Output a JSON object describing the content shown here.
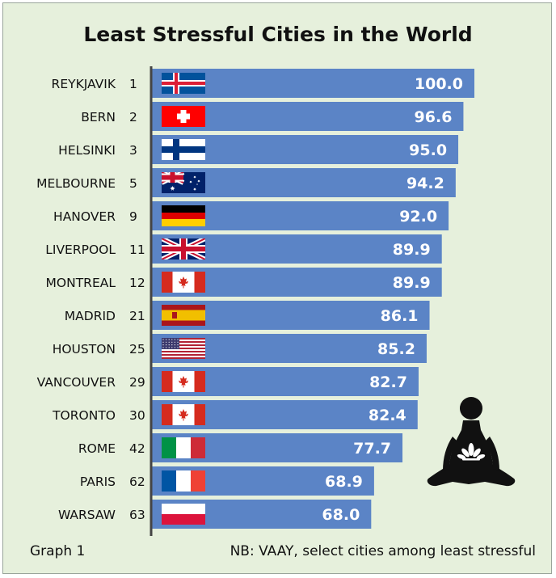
{
  "chart_data": {
    "type": "bar",
    "orientation": "horizontal",
    "title": "Least Stressful Cities in the World",
    "xlabel": "",
    "ylabel": "",
    "xlim": [
      0,
      100
    ],
    "grid": false,
    "legend": "none",
    "bar_color": "#5b84c6",
    "categories": [
      "REYKJAVIK",
      "BERN",
      "HELSINKI",
      "MELBOURNE",
      "HANOVER",
      "LIVERPOOL",
      "MONTREAL",
      "MADRID",
      "HOUSTON",
      "VANCOUVER",
      "TORONTO",
      "ROME",
      "PARIS",
      "WARSAW"
    ],
    "ranks": [
      "1",
      "2",
      "3",
      "5",
      "9",
      "11",
      "12",
      "21",
      "25",
      "29",
      "30",
      "42",
      "62",
      "63"
    ],
    "values": [
      100.0,
      96.6,
      95.0,
      94.2,
      92.0,
      89.9,
      89.9,
      86.1,
      85.2,
      82.7,
      82.4,
      77.7,
      68.9,
      68.0
    ],
    "value_labels": [
      "100.0",
      "96.6",
      "95.0",
      "94.2",
      "92.0",
      "89.9",
      "89.9",
      "86.1",
      "85.2",
      "82.7",
      "82.4",
      "77.7",
      "68.9",
      "68.0"
    ],
    "flags": [
      "iceland-flag-icon",
      "switzerland-flag-icon",
      "finland-flag-icon",
      "australia-flag-icon",
      "germany-flag-icon",
      "uk-flag-icon",
      "canada-flag-icon",
      "spain-flag-icon",
      "usa-flag-icon",
      "canada-flag-icon",
      "canada-flag-icon",
      "italy-flag-icon",
      "france-flag-icon",
      "poland-flag-icon"
    ]
  },
  "decoration": {
    "icon": "meditation-lotus-icon"
  },
  "footer": {
    "graph_label": "Graph 1",
    "note": "NB: VAAY, select cities among least stressful"
  }
}
